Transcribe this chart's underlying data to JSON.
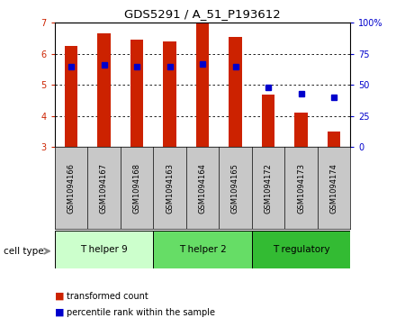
{
  "title": "GDS5291 / A_51_P193612",
  "samples": [
    "GSM1094166",
    "GSM1094167",
    "GSM1094168",
    "GSM1094163",
    "GSM1094164",
    "GSM1094165",
    "GSM1094172",
    "GSM1094173",
    "GSM1094174"
  ],
  "red_values": [
    6.25,
    6.65,
    6.45,
    6.4,
    7.0,
    6.55,
    4.7,
    4.1,
    3.5
  ],
  "blue_percentiles": [
    65,
    66,
    65,
    65,
    67,
    65,
    48,
    43,
    40
  ],
  "ylim_left": [
    3,
    7
  ],
  "ylim_right": [
    0,
    100
  ],
  "yticks_left": [
    3,
    4,
    5,
    6,
    7
  ],
  "yticks_right": [
    0,
    25,
    50,
    75,
    100
  ],
  "ytick_labels_right": [
    "0",
    "25",
    "50",
    "75",
    "100%"
  ],
  "group_labels": [
    "T helper 9",
    "T helper 2",
    "T regulatory"
  ],
  "group_starts": [
    0,
    3,
    6
  ],
  "group_ends": [
    3,
    6,
    9
  ],
  "group_colors": [
    "#ccffcc",
    "#66dd66",
    "#33bb33"
  ],
  "bar_color": "#cc2200",
  "dot_color": "#0000cc",
  "label_box_color": "#c8c8c8",
  "bar_width": 0.4,
  "legend_red": "transformed count",
  "legend_blue": "percentile rank within the sample",
  "cell_type_label": "cell type"
}
